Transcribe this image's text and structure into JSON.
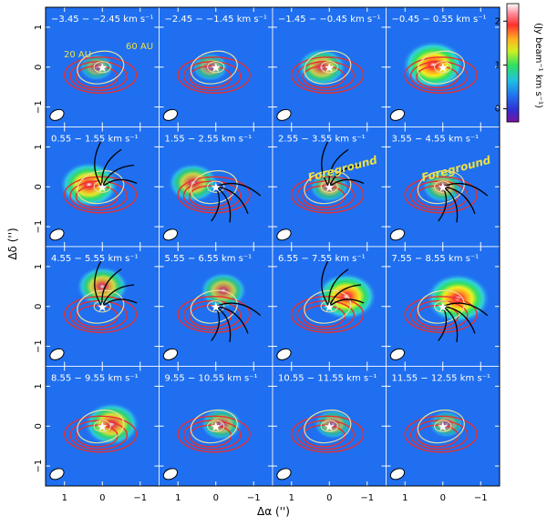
{
  "figure": {
    "xlabel": "Δα ('')",
    "ylabel": "Δδ ('')",
    "colorbar_label": "(Jy beam⁻¹ km s⁻¹)",
    "colorbar_ticks": [
      "0",
      "1",
      "2"
    ],
    "x_ticks": [
      "1",
      "0",
      "−1"
    ],
    "y_ticks": [
      "1",
      "0",
      "−1"
    ],
    "scale_labels": [
      "20 AU",
      "60 AU"
    ],
    "foreground_label": "Foreground",
    "colors": {
      "background_map": "#1f6ff0",
      "contour": "#e83030",
      "ellipse": "#e8e0a0",
      "trace": "#000000",
      "star": "#ffffff",
      "label_yellow": "#f0e040"
    }
  },
  "chart_data": {
    "type": "heatmap",
    "panels_grid": [
      4,
      4
    ],
    "xlim": [
      1.5,
      -1.5
    ],
    "ylim": [
      -1.5,
      1.5
    ],
    "colorbar_range": [
      -0.3,
      2.4
    ],
    "colorscale": [
      "purple",
      "blue",
      "cyan",
      "green",
      "yellow",
      "orange",
      "red",
      "white"
    ],
    "panels": [
      {
        "label": "−3.45 − −2.45 km s⁻¹",
        "peak": [
          0.15,
          0.0
        ],
        "intensity": 0.6,
        "foreground": false
      },
      {
        "label": "−2.45 − −1.45 km s⁻¹",
        "peak": [
          0.15,
          0.0
        ],
        "intensity": 0.7,
        "foreground": false
      },
      {
        "label": "−1.45 − −0.45 km s⁻¹",
        "peak": [
          0.2,
          0.0
        ],
        "intensity": 1.4,
        "foreground": false
      },
      {
        "label": "−0.45 − 0.55 km s⁻¹",
        "peak": [
          0.25,
          0.05
        ],
        "intensity": 2.2,
        "foreground": false
      },
      {
        "label": "0.55 − 1.55 km s⁻¹",
        "peak": [
          0.35,
          0.05
        ],
        "intensity": 2.0,
        "foreground": false
      },
      {
        "label": "1.55 − 2.55 km s⁻¹",
        "peak": [
          0.6,
          0.1
        ],
        "intensity": 1.5,
        "foreground": false
      },
      {
        "label": "2.55 − 3.55 km s⁻¹",
        "peak": [
          0.0,
          0.0
        ],
        "intensity": 0.9,
        "foreground": true
      },
      {
        "label": "3.55 − 4.55 km s⁻¹",
        "peak": [
          0.0,
          0.0
        ],
        "intensity": 1.0,
        "foreground": true
      },
      {
        "label": "4.55 − 5.55 km s⁻¹",
        "peak": [
          0.0,
          0.5
        ],
        "intensity": 1.6,
        "foreground": false
      },
      {
        "label": "5.55 − 6.55 km s⁻¹",
        "peak": [
          -0.2,
          0.4
        ],
        "intensity": 1.3,
        "foreground": false
      },
      {
        "label": "6.55 − 7.55 km s⁻¹",
        "peak": [
          -0.45,
          0.25
        ],
        "intensity": 2.1,
        "foreground": false
      },
      {
        "label": "7.55 − 8.55 km s⁻¹",
        "peak": [
          -0.4,
          0.2
        ],
        "intensity": 2.3,
        "foreground": false
      },
      {
        "label": "8.55 − 9.55 km s⁻¹",
        "peak": [
          -0.25,
          0.05
        ],
        "intensity": 1.8,
        "foreground": false
      },
      {
        "label": "9.55 − 10.55 km s⁻¹",
        "peak": [
          -0.15,
          0.05
        ],
        "intensity": 1.0,
        "foreground": false
      },
      {
        "label": "10.55 − 11.55 km s⁻¹",
        "peak": [
          -0.1,
          0.05
        ],
        "intensity": 0.8,
        "foreground": false
      },
      {
        "label": "11.55 − 12.55 km s⁻¹",
        "peak": [
          -0.1,
          0.05
        ],
        "intensity": 0.6,
        "foreground": false
      }
    ]
  }
}
